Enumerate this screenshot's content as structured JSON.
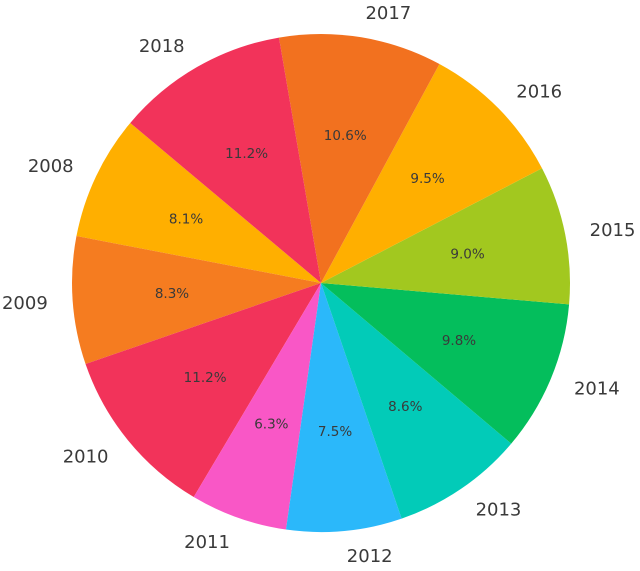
{
  "chart_data": {
    "type": "pie",
    "title": "",
    "unit": "%",
    "direction": "counterclockwise",
    "start_angle_deg": 140,
    "label_distance": 1.1,
    "pct_distance": 0.6,
    "background_color": "#FFFFFF",
    "text_color": "#3A3A3A",
    "slices": [
      {
        "label": "2008",
        "value": 8.1,
        "pct_text": "8.1%",
        "color": "#FFAF00"
      },
      {
        "label": "2009",
        "value": 8.3,
        "pct_text": "8.3%",
        "color": "#F57C20"
      },
      {
        "label": "2010",
        "value": 11.2,
        "pct_text": "11.2%",
        "color": "#F2335A"
      },
      {
        "label": "2011",
        "value": 6.3,
        "pct_text": "6.3%",
        "color": "#F957C6"
      },
      {
        "label": "2012",
        "value": 7.5,
        "pct_text": "7.5%",
        "color": "#2BB8FA"
      },
      {
        "label": "2013",
        "value": 8.6,
        "pct_text": "8.6%",
        "color": "#02CBB8"
      },
      {
        "label": "2014",
        "value": 9.8,
        "pct_text": "9.8%",
        "color": "#04BE5C"
      },
      {
        "label": "2015",
        "value": 9.0,
        "pct_text": "9.0%",
        "color": "#A2C81F"
      },
      {
        "label": "2016",
        "value": 9.5,
        "pct_text": "9.5%",
        "color": "#FFAF00"
      },
      {
        "label": "2017",
        "value": 10.6,
        "pct_text": "10.6%",
        "color": "#F2711F"
      },
      {
        "label": "2018",
        "value": 11.2,
        "pct_text": "11.2%",
        "color": "#F2335A"
      }
    ]
  }
}
